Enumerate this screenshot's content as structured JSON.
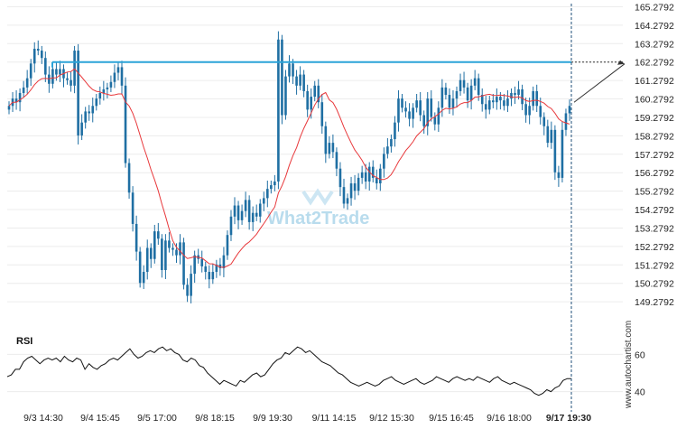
{
  "chart_data": [
    {
      "type": "candlestick",
      "title": "",
      "y_ticks": [
        "165.2792",
        "164.2792",
        "163.2792",
        "162.2792",
        "161.2792",
        "160.2792",
        "159.2792",
        "158.2792",
        "157.2792",
        "156.2792",
        "155.2792",
        "154.2792",
        "153.2792",
        "152.2792",
        "151.2792",
        "150.2792",
        "149.2792"
      ],
      "ylim": [
        148.6,
        165.35
      ],
      "x_ticks": [
        "9/3 14:30",
        "9/4 15:45",
        "9/5 17:00",
        "9/8 18:15",
        "9/9 19:30",
        "9/11 14:15",
        "9/12 15:30",
        "9/15 16:45",
        "9/16 18:00",
        "9/17 19:30"
      ],
      "resistance_level": 162.2792,
      "moving_average_color": "#e8383b",
      "resistance_color": "#2ba3d8",
      "candle_color": "#1f6fa3",
      "price_series": [
        159.9,
        160.3,
        160.1,
        160.6,
        160.9,
        161.4,
        162.2,
        163.0,
        162.9,
        162.5,
        161.6,
        161.1,
        161.9,
        161.6,
        161.9,
        161.4,
        161.3,
        161.0,
        162.9,
        158.3,
        159.0,
        159.6,
        159.5,
        159.9,
        160.3,
        160.6,
        160.8,
        160.9,
        161.2,
        161.7,
        162.0,
        161.0,
        156.8,
        155.2,
        153.5,
        152.0,
        150.3,
        150.9,
        152.2,
        151.6,
        153.1,
        152.7,
        151.0,
        152.6,
        152.2,
        152.1,
        151.8,
        152.5,
        150.2,
        149.6,
        150.8,
        151.8,
        151.6,
        151.2,
        150.9,
        150.5,
        150.9,
        151.3,
        151.1,
        151.8,
        152.9,
        153.9,
        154.5,
        153.7,
        154.2,
        154.8,
        153.6,
        154.1,
        153.9,
        154.6,
        154.9,
        155.4,
        155.6,
        155.8,
        163.5,
        159.4,
        161.5,
        162.2,
        161.5,
        161.0,
        161.6,
        160.7,
        159.7,
        160.4,
        161.0,
        160.1,
        158.8,
        157.3,
        157.9,
        157.4,
        156.5,
        155.5,
        154.6,
        154.9,
        155.7,
        155.3,
        156.0,
        156.3,
        155.8,
        156.6,
        156.0,
        155.7,
        156.5,
        157.3,
        157.7,
        158.1,
        159.0,
        160.3,
        159.8,
        159.6,
        159.2,
        159.8,
        160.2,
        159.4,
        158.8,
        160.3,
        159.3,
        158.9,
        159.8,
        160.9,
        160.5,
        159.8,
        160.3,
        160.7,
        161.3,
        160.9,
        160.2,
        161.0,
        161.4,
        160.5,
        160.0,
        159.7,
        160.2,
        160.1,
        160.4,
        160.2,
        159.9,
        160.3,
        160.6,
        160.5,
        160.8,
        160.0,
        159.4,
        159.9,
        160.7,
        159.9,
        159.3,
        158.8,
        157.9,
        158.6,
        156.3,
        156.0,
        158.6,
        159.5,
        159.9
      ]
    },
    {
      "type": "line",
      "title": "RSI",
      "y_ticks": [
        "60",
        "40"
      ],
      "ylim": [
        33,
        67
      ],
      "series": [
        {
          "name": "RSI",
          "values": [
            48,
            49,
            52,
            52,
            56,
            58,
            59,
            57,
            55,
            57,
            58,
            57,
            58,
            56,
            59,
            57,
            56,
            58,
            57,
            52,
            55,
            53,
            52,
            54,
            55,
            57,
            58,
            57,
            59,
            61,
            63,
            60,
            58,
            59,
            61,
            62,
            61,
            63,
            64,
            62,
            63,
            61,
            60,
            57,
            56,
            58,
            57,
            54,
            53,
            50,
            48,
            46,
            44,
            46,
            45,
            44,
            43,
            46,
            45,
            47,
            49,
            50,
            48,
            49,
            52,
            55,
            57,
            58,
            61,
            60,
            62,
            64,
            63,
            61,
            62,
            60,
            58,
            56,
            55,
            54,
            52,
            50,
            49,
            47,
            45,
            44,
            43,
            44,
            45,
            44,
            43,
            44,
            46,
            47,
            48,
            46,
            45,
            44,
            45,
            46,
            47,
            45,
            44,
            45,
            46,
            48,
            47,
            46,
            45,
            47,
            48,
            47,
            46,
            47,
            46,
            48,
            47,
            46,
            45,
            47,
            48,
            46,
            45,
            44,
            45,
            44,
            43,
            42,
            41,
            39,
            38,
            39,
            41,
            40,
            42,
            43,
            46,
            47,
            47
          ]
        }
      ]
    }
  ],
  "rsi_label": "RSI",
  "watermark": "What2Trade",
  "credit": "www.autochartist.com"
}
